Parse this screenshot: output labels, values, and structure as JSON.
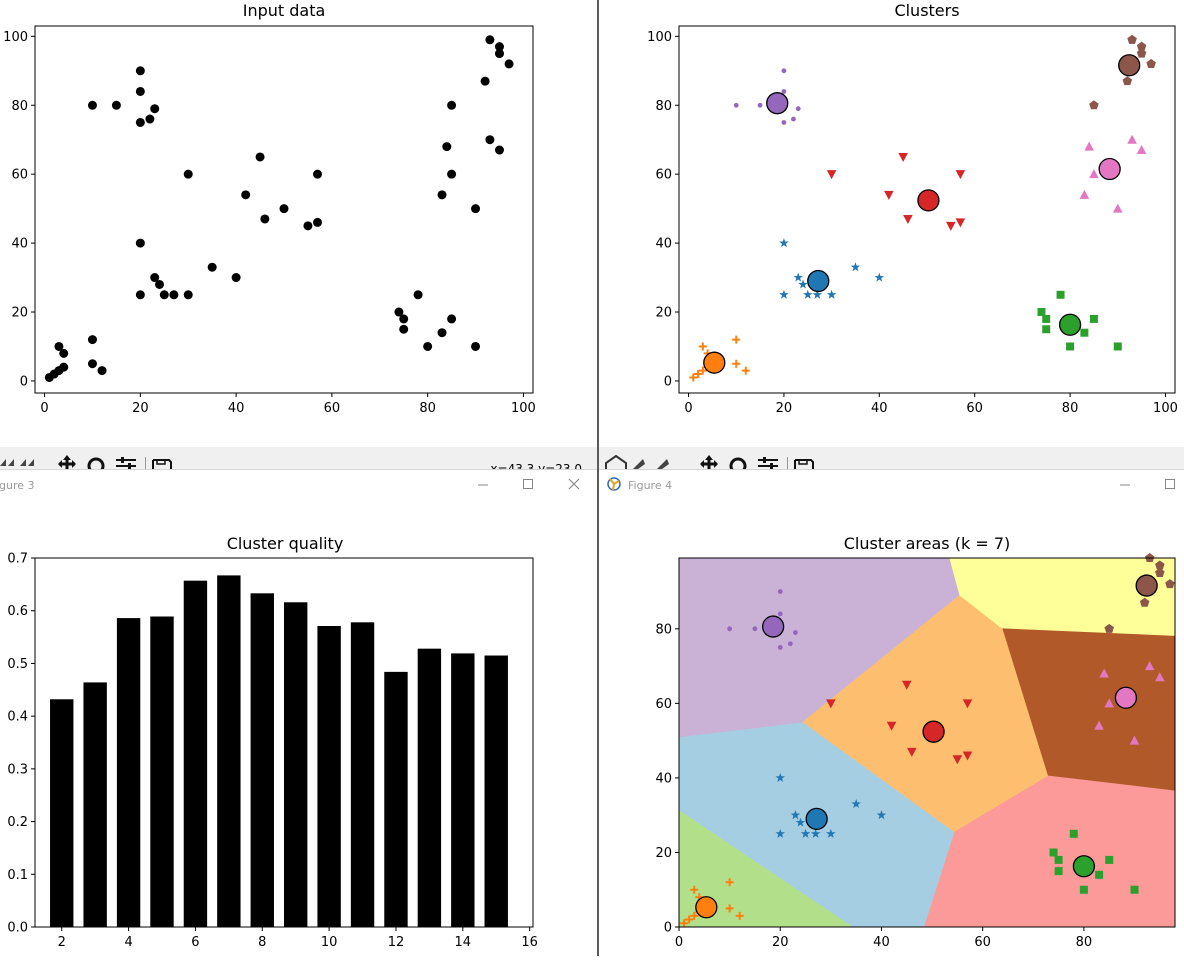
{
  "windows": {
    "figure3": {
      "title": "gure 3"
    },
    "figure4": {
      "title": "Figure 4"
    }
  },
  "toolbar": {
    "coords": "x=43.3 y=23.0"
  },
  "colors": {
    "blue": "#1f77b4",
    "orange": "#ff7f0e",
    "green": "#2ca02c",
    "red": "#d62728",
    "purple": "#9467bd",
    "brown": "#8c564b",
    "pink": "#e377c2"
  },
  "chart_data": [
    {
      "type": "scatter",
      "title": "Input data",
      "xlim": [
        -2,
        102
      ],
      "ylim": [
        -3.5,
        103
      ],
      "x_ticks": [
        0,
        20,
        40,
        60,
        80,
        100
      ],
      "y_ticks": [
        0,
        20,
        40,
        60,
        80,
        100
      ],
      "points": [
        [
          1,
          1
        ],
        [
          2,
          2
        ],
        [
          3,
          3
        ],
        [
          3,
          10
        ],
        [
          4,
          4
        ],
        [
          4,
          8
        ],
        [
          10,
          5
        ],
        [
          10,
          12
        ],
        [
          12,
          3
        ],
        [
          10,
          80
        ],
        [
          15,
          80
        ],
        [
          20,
          75
        ],
        [
          20,
          84
        ],
        [
          20,
          90
        ],
        [
          22,
          76
        ],
        [
          23,
          79
        ],
        [
          20,
          25
        ],
        [
          20,
          40
        ],
        [
          23,
          30
        ],
        [
          24,
          28
        ],
        [
          25,
          25
        ],
        [
          27,
          25
        ],
        [
          30,
          25
        ],
        [
          35,
          33
        ],
        [
          40,
          30
        ],
        [
          30,
          60
        ],
        [
          42,
          54
        ],
        [
          45,
          65
        ],
        [
          46,
          47
        ],
        [
          50,
          50
        ],
        [
          55,
          45
        ],
        [
          57,
          46
        ],
        [
          57,
          60
        ],
        [
          74,
          20
        ],
        [
          75,
          15
        ],
        [
          75,
          18
        ],
        [
          78,
          25
        ],
        [
          80,
          10
        ],
        [
          83,
          14
        ],
        [
          85,
          18
        ],
        [
          90,
          10
        ],
        [
          83,
          54
        ],
        [
          84,
          68
        ],
        [
          85,
          60
        ],
        [
          85,
          80
        ],
        [
          90,
          50
        ],
        [
          93,
          70
        ],
        [
          95,
          67
        ],
        [
          92,
          87
        ],
        [
          93,
          99
        ],
        [
          95,
          95
        ],
        [
          95,
          97
        ],
        [
          97,
          92
        ]
      ]
    },
    {
      "type": "scatter",
      "title": "Clusters",
      "xlim": [
        -2,
        102
      ],
      "ylim": [
        -3.5,
        103
      ],
      "x_ticks": [
        0,
        20,
        40,
        60,
        80,
        100
      ],
      "y_ticks": [
        0,
        20,
        40,
        60,
        80,
        100
      ],
      "clusters": [
        {
          "color": "blue",
          "marker": "star",
          "center": [
            27.2,
            29.0
          ],
          "points": [
            [
              20,
              25
            ],
            [
              20,
              40
            ],
            [
              23,
              30
            ],
            [
              24,
              28
            ],
            [
              25,
              25
            ],
            [
              27,
              25
            ],
            [
              30,
              25
            ],
            [
              35,
              33
            ],
            [
              40,
              30
            ]
          ]
        },
        {
          "color": "orange",
          "marker": "plus",
          "center": [
            5.4,
            5.3
          ],
          "points": [
            [
              1,
              1
            ],
            [
              2,
              2
            ],
            [
              3,
              3
            ],
            [
              3,
              10
            ],
            [
              4,
              4
            ],
            [
              4,
              8
            ],
            [
              10,
              5
            ],
            [
              10,
              12
            ],
            [
              12,
              3
            ]
          ]
        },
        {
          "color": "green",
          "marker": "square",
          "center": [
            80.0,
            16.3
          ],
          "points": [
            [
              74,
              20
            ],
            [
              75,
              15
            ],
            [
              75,
              18
            ],
            [
              78,
              25
            ],
            [
              80,
              10
            ],
            [
              83,
              14
            ],
            [
              85,
              18
            ],
            [
              90,
              10
            ]
          ]
        },
        {
          "color": "red",
          "marker": "triangle_down",
          "center": [
            50.3,
            52.4
          ],
          "points": [
            [
              30,
              60
            ],
            [
              42,
              54
            ],
            [
              45,
              65
            ],
            [
              46,
              47
            ],
            [
              55,
              45
            ],
            [
              57,
              46
            ],
            [
              57,
              60
            ]
          ]
        },
        {
          "color": "purple",
          "marker": "dot",
          "center": [
            18.6,
            80.6
          ],
          "points": [
            [
              10,
              80
            ],
            [
              15,
              80
            ],
            [
              20,
              75
            ],
            [
              20,
              84
            ],
            [
              20,
              90
            ],
            [
              22,
              76
            ],
            [
              23,
              79
            ]
          ]
        },
        {
          "color": "brown",
          "marker": "pentagon",
          "center": [
            92.4,
            91.6
          ],
          "points": [
            [
              85,
              80
            ],
            [
              92,
              87
            ],
            [
              93,
              99
            ],
            [
              95,
              95
            ],
            [
              95,
              97
            ],
            [
              97,
              92
            ]
          ]
        },
        {
          "color": "pink",
          "marker": "triangle_up",
          "center": [
            88.3,
            61.5
          ],
          "points": [
            [
              83,
              54
            ],
            [
              84,
              68
            ],
            [
              85,
              60
            ],
            [
              90,
              50
            ],
            [
              93,
              70
            ],
            [
              95,
              67
            ]
          ]
        }
      ]
    },
    {
      "type": "bar",
      "title": "Cluster quality",
      "xlim": [
        1.2,
        16.1
      ],
      "ylim": [
        0,
        0.7
      ],
      "x_ticks": [
        2,
        4,
        6,
        8,
        10,
        12,
        14,
        16
      ],
      "y_ticks": [
        "0.0",
        "0.1",
        "0.2",
        "0.3",
        "0.4",
        "0.5",
        "0.6",
        "0.7"
      ],
      "categories": [
        2,
        3,
        4,
        5,
        6,
        7,
        8,
        9,
        10,
        11,
        12,
        13,
        14,
        15
      ],
      "values": [
        0.432,
        0.464,
        0.586,
        0.589,
        0.657,
        0.667,
        0.633,
        0.616,
        0.571,
        0.578,
        0.484,
        0.528,
        0.519,
        0.515
      ],
      "color": "#000000"
    },
    {
      "type": "scatter",
      "title": "Cluster areas (k = 7)",
      "xlim": [
        0,
        98
      ],
      "ylim": [
        0,
        99
      ],
      "x_ticks": [
        0,
        20,
        40,
        60,
        80
      ],
      "y_ticks": [
        0,
        20,
        40,
        60,
        80
      ],
      "region_colors": {
        "orange": "#b2df8a",
        "blue": "#a6cee3",
        "purple": "#cab2d6",
        "red": "#fdbf6f",
        "brown": "#ffff99",
        "pink": "#b15928",
        "green": "#fb9a99"
      },
      "regions": {
        "orange": [
          [
            0,
            31.5
          ],
          [
            0,
            0
          ],
          [
            34.5,
            0
          ]
        ],
        "blue": [
          [
            0,
            31.5
          ],
          [
            0,
            51
          ],
          [
            24.5,
            55
          ],
          [
            54.5,
            25.5
          ],
          [
            48.5,
            0
          ],
          [
            34.5,
            0
          ]
        ],
        "purple": [
          [
            0,
            51
          ],
          [
            0,
            99
          ],
          [
            53.5,
            99
          ],
          [
            55.5,
            89
          ],
          [
            24.5,
            55
          ]
        ],
        "red": [
          [
            24.5,
            55
          ],
          [
            55.5,
            89
          ],
          [
            64,
            80
          ],
          [
            73,
            40.5
          ],
          [
            54.5,
            25.5
          ]
        ],
        "brown": [
          [
            53.5,
            99
          ],
          [
            98,
            99
          ],
          [
            98,
            78
          ],
          [
            64,
            80
          ],
          [
            55.5,
            89
          ]
        ],
        "pink": [
          [
            64,
            80
          ],
          [
            98,
            78
          ],
          [
            98,
            36.5
          ],
          [
            73,
            40.5
          ]
        ],
        "green": [
          [
            48.5,
            0
          ],
          [
            54.5,
            25.5
          ],
          [
            73,
            40.5
          ],
          [
            98,
            36.5
          ],
          [
            98,
            0
          ]
        ]
      }
    }
  ]
}
